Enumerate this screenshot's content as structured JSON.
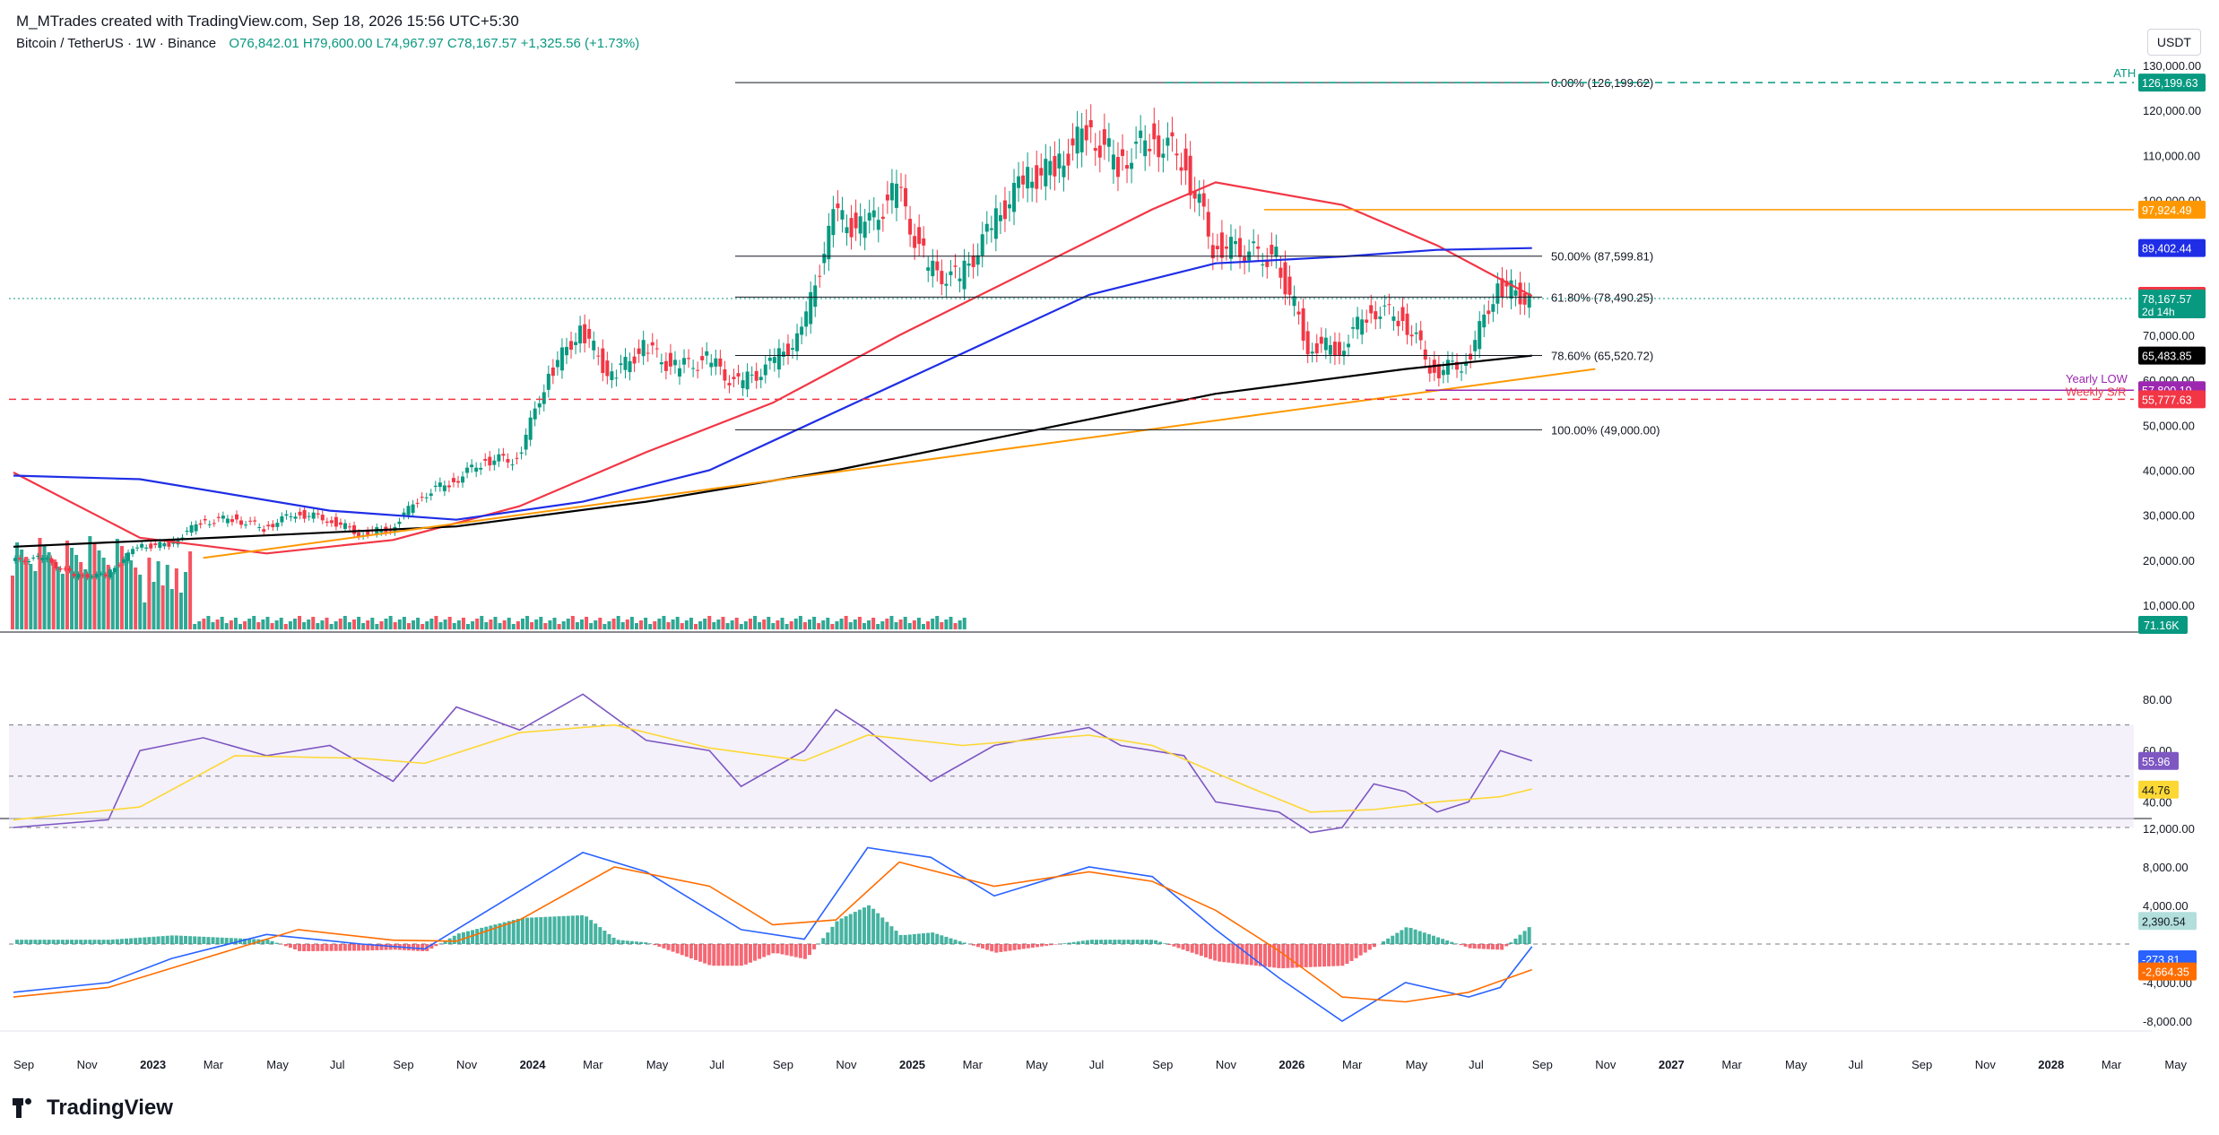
{
  "header": {
    "credit": "M_MTrades created with TradingView.com, Sep 18, 2026 15:56 UTC+5:30",
    "symbol": "Bitcoin / TetherUS · 1W · Binance",
    "open": "O76,842.01",
    "high": "H79,600.00",
    "low": "L74,967.97",
    "close": "C78,167.57",
    "change": "+1,325.56 (+1.73%)",
    "currency": "USDT"
  },
  "brand": "TradingView",
  "colors": {
    "up": "#089981",
    "down": "#f23645",
    "ma50": "#f23645",
    "ma100": "#1f2ee6",
    "ma200": "#000000",
    "trendline": "#ff9800",
    "rsi": "#7e57c2",
    "rsi_ma": "#fdd835",
    "macd": "#2962ff",
    "signal": "#ff6d00"
  },
  "chart_data": [
    {
      "type": "candlestick",
      "pane": "price",
      "x_axis_labels": [
        "Sep",
        "Nov",
        "2023",
        "Mar",
        "May",
        "Jul",
        "Sep",
        "Nov",
        "2024",
        "Mar",
        "May",
        "Jul",
        "Sep",
        "Nov",
        "2025",
        "Mar",
        "May",
        "Jul",
        "Sep",
        "Nov",
        "2026",
        "Mar",
        "May",
        "Jul",
        "Sep",
        "Nov",
        "2027",
        "Mar",
        "May",
        "Jul",
        "Sep",
        "Nov",
        "2028",
        "Mar",
        "May"
      ],
      "y_ticks": [
        "130,000.00",
        "120,000.00",
        "110,000.00",
        "100,000.00",
        "90,000.00",
        "80,000.00",
        "70,000.00",
        "60,000.00",
        "50,000.00",
        "40,000.00",
        "30,000.00",
        "20,000.00",
        "10,000.00"
      ],
      "price_path": [
        [
          "2022-09",
          19800
        ],
        [
          "2022-10",
          20500
        ],
        [
          "2022-11",
          16500
        ],
        [
          "2022-12",
          16600
        ],
        [
          "2023-01",
          23100
        ],
        [
          "2023-02",
          23500
        ],
        [
          "2023-03",
          28500
        ],
        [
          "2023-04",
          29300
        ],
        [
          "2023-05",
          27200
        ],
        [
          "2023-06",
          30500
        ],
        [
          "2023-07",
          29200
        ],
        [
          "2023-08",
          26000
        ],
        [
          "2023-09",
          27000
        ],
        [
          "2023-10",
          34500
        ],
        [
          "2023-11",
          37700
        ],
        [
          "2023-12",
          42300
        ],
        [
          "2024-01",
          42500
        ],
        [
          "2024-02",
          61100
        ],
        [
          "2024-03",
          71300
        ],
        [
          "2024-04",
          60600
        ],
        [
          "2024-05",
          67500
        ],
        [
          "2024-06",
          62700
        ],
        [
          "2024-07",
          64600
        ],
        [
          "2024-08",
          58900
        ],
        [
          "2024-09",
          63300
        ],
        [
          "2024-10",
          70200
        ],
        [
          "2024-11",
          96400
        ],
        [
          "2024-12",
          93400
        ],
        [
          "2025-01",
          102400
        ],
        [
          "2025-02",
          84300
        ],
        [
          "2025-03",
          82500
        ],
        [
          "2025-04",
          94200
        ],
        [
          "2025-05",
          104600
        ],
        [
          "2025-06",
          107100
        ],
        [
          "2025-07",
          115700
        ],
        [
          "2025-08",
          108200
        ],
        [
          "2025-09",
          114000
        ],
        [
          "2025-10",
          110000
        ],
        [
          "2025-11",
          90400
        ],
        [
          "2026-01",
          87000
        ],
        [
          "2026-02",
          68000
        ],
        [
          "2026-03",
          67000
        ],
        [
          "2026-04",
          76000
        ],
        [
          "2026-05",
          74000
        ],
        [
          "2026-06",
          62000
        ],
        [
          "2026-07",
          64000
        ],
        [
          "2026-08",
          81000
        ],
        [
          "2026-09",
          78168
        ]
      ],
      "moving_averages": [
        {
          "label": "",
          "color": "#f23645",
          "last": 78760.37,
          "points": [
            [
              "2022-09",
              39500
            ],
            [
              "2023-01",
              25000
            ],
            [
              "2023-05",
              21500
            ],
            [
              "2023-09",
              24500
            ],
            [
              "2024-01",
              32000
            ],
            [
              "2024-05",
              44000
            ],
            [
              "2024-09",
              55000
            ],
            [
              "2025-01",
              70000
            ],
            [
              "2025-05",
              84000
            ],
            [
              "2025-09",
              98000
            ],
            [
              "2025-11",
              104000
            ],
            [
              "2026-03",
              99000
            ],
            [
              "2026-06",
              90000
            ],
            [
              "2026-09",
              78760
            ]
          ]
        },
        {
          "label": "",
          "color": "#1f2ee6",
          "last": 89402.44,
          "points": [
            [
              "2022-09",
              38800
            ],
            [
              "2023-01",
              38000
            ],
            [
              "2023-07",
              31000
            ],
            [
              "2023-11",
              29000
            ],
            [
              "2024-03",
              33000
            ],
            [
              "2024-07",
              40000
            ],
            [
              "2024-11",
              53000
            ],
            [
              "2025-03",
              66000
            ],
            [
              "2025-07",
              79000
            ],
            [
              "2025-11",
              86000
            ],
            [
              "2026-03",
              87500
            ],
            [
              "2026-06",
              89000
            ],
            [
              "2026-09",
              89402
            ]
          ]
        },
        {
          "label": "",
          "color": "#000000",
          "last": 65483.85,
          "points": [
            [
              "2022-09",
              23000
            ],
            [
              "2023-05",
              25500
            ],
            [
              "2023-11",
              27500
            ],
            [
              "2024-05",
              33000
            ],
            [
              "2024-11",
              40000
            ],
            [
              "2025-05",
              48500
            ],
            [
              "2025-11",
              57000
            ],
            [
              "2026-05",
              62500
            ],
            [
              "2026-09",
              65484
            ]
          ]
        }
      ],
      "fibonacci": [
        {
          "label": "0.00% (126,199.62)",
          "price": 126199.62
        },
        {
          "label": "50.00% (87,599.81)",
          "price": 87599.81
        },
        {
          "label": "61.80% (78,490.25)",
          "price": 78490.25
        },
        {
          "label": "78.60% (65,520.72)",
          "price": 65520.72
        },
        {
          "label": "100.00% (49,000.00)",
          "price": 49000.0
        }
      ],
      "horizontal_lines": [
        {
          "label": "ATH",
          "price": 126199.63,
          "color": "#089981",
          "axis": "126,199.63"
        },
        {
          "label": "",
          "price": 97924.49,
          "color": "#ff9800",
          "axis": "97,924.49"
        },
        {
          "label": "Yearly LOW",
          "price": 57800.19,
          "color": "#9c27b0",
          "axis": "57,800.19"
        },
        {
          "label": "Weekly S/R",
          "price": 55777.63,
          "color": "#f23645",
          "axis": "55,777.63"
        }
      ],
      "trendline": [
        [
          "2023-03",
          20500
        ],
        [
          "2026-11",
          62500
        ]
      ],
      "axis_labels": [
        {
          "text": "89,402.44",
          "price": 89402.44,
          "color": "#1f2ee6"
        },
        {
          "text": "78,760.37",
          "price": 78760.37,
          "color": "#f23645"
        },
        {
          "text": "78,167.57",
          "price": 78167.57,
          "color": "#089981",
          "sub": "2d 14h"
        },
        {
          "text": "65,483.85",
          "price": 65483.85,
          "color": "#000000"
        }
      ]
    },
    {
      "type": "bar",
      "pane": "volume",
      "last_label": "71.16K"
    },
    {
      "type": "line",
      "pane": "rsi",
      "y_ticks": [
        "80.00",
        "60.00",
        "40.00"
      ],
      "band": [
        30,
        70
      ],
      "midline": 50,
      "series": [
        {
          "name": "",
          "last": 55.96,
          "label": "55.96",
          "points": [
            [
              "2022-09",
              30
            ],
            [
              "2022-12",
              33
            ],
            [
              "2023-01",
              60
            ],
            [
              "2023-03",
              65
            ],
            [
              "2023-05",
              58
            ],
            [
              "2023-07",
              62
            ],
            [
              "2023-09",
              48
            ],
            [
              "2023-11",
              77
            ],
            [
              "2024-01",
              68
            ],
            [
              "2024-03",
              82
            ],
            [
              "2024-05",
              64
            ],
            [
              "2024-07",
              60
            ],
            [
              "2024-08",
              46
            ],
            [
              "2024-10",
              60
            ],
            [
              "2024-11",
              76
            ],
            [
              "2024-12",
              68
            ],
            [
              "2025-02",
              48
            ],
            [
              "2025-04",
              62
            ],
            [
              "2025-07",
              69
            ],
            [
              "2025-08",
              62
            ],
            [
              "2025-10",
              58
            ],
            [
              "2025-11",
              40
            ],
            [
              "2026-01",
              36
            ],
            [
              "2026-02",
              28
            ],
            [
              "2026-03",
              30
            ],
            [
              "2026-04",
              47
            ],
            [
              "2026-05",
              44
            ],
            [
              "2026-06",
              36
            ],
            [
              "2026-07",
              40
            ],
            [
              "2026-08",
              60
            ],
            [
              "2026-09",
              56
            ]
          ]
        },
        {
          "name": "",
          "last": 44.76,
          "label": "44.76",
          "points": [
            [
              "2022-09",
              33
            ],
            [
              "2023-01",
              38
            ],
            [
              "2023-04",
              58
            ],
            [
              "2023-08",
              57
            ],
            [
              "2023-10",
              55
            ],
            [
              "2024-01",
              67
            ],
            [
              "2024-04",
              70
            ],
            [
              "2024-07",
              61
            ],
            [
              "2024-10",
              56
            ],
            [
              "2024-12",
              66
            ],
            [
              "2025-03",
              62
            ],
            [
              "2025-07",
              66
            ],
            [
              "2025-09",
              62
            ],
            [
              "2025-12",
              46
            ],
            [
              "2026-02",
              36
            ],
            [
              "2026-04",
              37
            ],
            [
              "2026-06",
              40
            ],
            [
              "2026-08",
              42
            ],
            [
              "2026-09",
              45
            ]
          ]
        }
      ]
    },
    {
      "type": "bar",
      "pane": "macd",
      "y_ticks": [
        "12,000.00",
        "8,000.00",
        "4,000.00",
        "-4,000.00",
        "-8,000.00"
      ],
      "labels": [
        {
          "text": "2,390.54",
          "color": "#b2dfdb"
        },
        {
          "text": "-273.81",
          "color": "#2962ff"
        },
        {
          "text": "-2,664.35",
          "color": "#ff6d00"
        }
      ],
      "series": [
        {
          "name": "",
          "points": [
            [
              "2022-09",
              -5000
            ],
            [
              "2022-12",
              -4000
            ],
            [
              "2023-02",
              -1500
            ],
            [
              "2023-05",
              1000
            ],
            [
              "2023-08",
              0
            ],
            [
              "2023-10",
              -500
            ],
            [
              "2023-12",
              3500
            ],
            [
              "2024-03",
              9500
            ],
            [
              "2024-05",
              7500
            ],
            [
              "2024-08",
              1500
            ],
            [
              "2024-10",
              500
            ],
            [
              "2024-12",
              10000
            ],
            [
              "2025-02",
              9000
            ],
            [
              "2025-04",
              5000
            ],
            [
              "2025-07",
              8000
            ],
            [
              "2025-09",
              7000
            ],
            [
              "2025-11",
              1500
            ],
            [
              "2026-01",
              -3500
            ],
            [
              "2026-03",
              -8000
            ],
            [
              "2026-05",
              -4000
            ],
            [
              "2026-07",
              -5500
            ],
            [
              "2026-08",
              -4500
            ],
            [
              "2026-09",
              -274
            ]
          ]
        },
        {
          "name": "",
          "points": [
            [
              "2022-09",
              -5500
            ],
            [
              "2022-12",
              -4500
            ],
            [
              "2023-03",
              -1500
            ],
            [
              "2023-06",
              1500
            ],
            [
              "2023-09",
              400
            ],
            [
              "2023-11",
              300
            ],
            [
              "2024-01",
              2500
            ],
            [
              "2024-04",
              8000
            ],
            [
              "2024-07",
              6000
            ],
            [
              "2024-09",
              2000
            ],
            [
              "2024-11",
              2500
            ],
            [
              "2025-01",
              8500
            ],
            [
              "2025-04",
              6000
            ],
            [
              "2025-07",
              7500
            ],
            [
              "2025-09",
              6500
            ],
            [
              "2025-11",
              3500
            ],
            [
              "2026-01",
              -700
            ],
            [
              "2026-03",
              -5500
            ],
            [
              "2026-05",
              -6000
            ],
            [
              "2026-07",
              -5000
            ],
            [
              "2026-09",
              -2664
            ]
          ]
        }
      ]
    }
  ]
}
